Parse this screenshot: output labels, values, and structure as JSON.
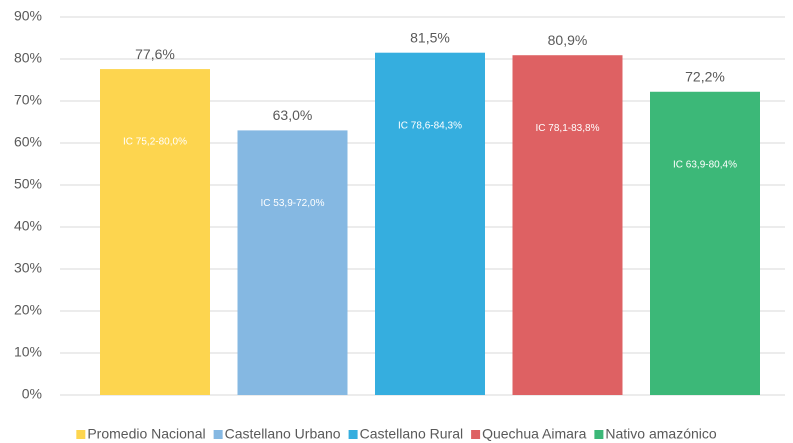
{
  "chart_data": {
    "type": "bar",
    "categories": [
      "Promedio Nacional",
      "Castellano Urbano",
      "Castellano Rural",
      "Quechua Aimara",
      "Nativo amazónico"
    ],
    "values": [
      77.6,
      63.0,
      81.5,
      80.9,
      72.2
    ],
    "value_labels": [
      "77,6%",
      "63,0%",
      "81,5%",
      "80,9%",
      "72,2%"
    ],
    "annotations": [
      "IC 75,2-80,0%",
      "IC 53,9-72,0%",
      "IC 78,6-84,3%",
      "IC 78,1-83,8%",
      "IC 63,9-80,4%"
    ],
    "colors": [
      "#fdd54f",
      "#85b8e2",
      "#35aedf",
      "#de6163",
      "#3cb878"
    ],
    "ylim": [
      0,
      90
    ],
    "yticks": [
      {
        "value": 0,
        "label": "0%"
      },
      {
        "value": 10,
        "label": "10%"
      },
      {
        "value": 20,
        "label": "20%"
      },
      {
        "value": 30,
        "label": "30%"
      },
      {
        "value": 40,
        "label": "40%"
      },
      {
        "value": 50,
        "label": "50%"
      },
      {
        "value": 60,
        "label": "60%"
      },
      {
        "value": 70,
        "label": "70%"
      },
      {
        "value": 80,
        "label": "80%"
      },
      {
        "value": 90,
        "label": "90%"
      }
    ],
    "grid": true,
    "legend": "bottom"
  }
}
